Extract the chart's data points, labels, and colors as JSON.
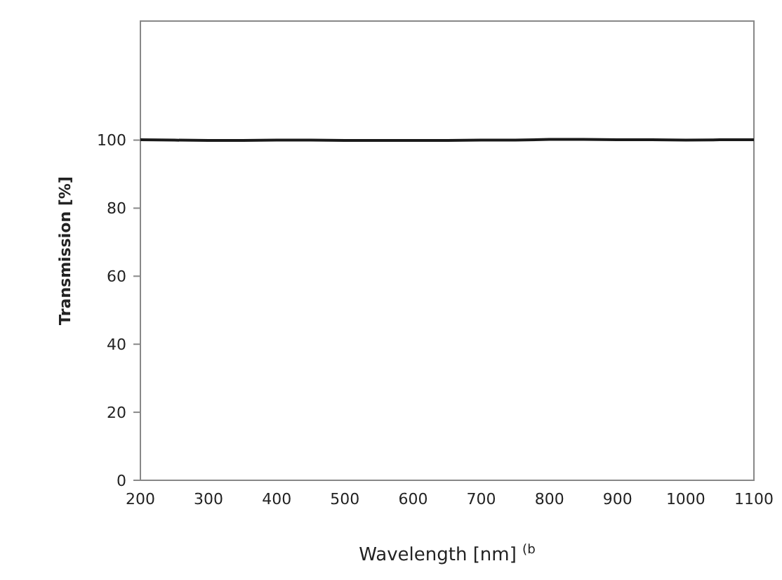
{
  "chart_data": {
    "type": "line",
    "xlabel": "Wavelength [nm] $^{(b}$",
    "ylabel": "Transmission [%]",
    "x": [
      200,
      250,
      300,
      350,
      400,
      450,
      500,
      550,
      600,
      650,
      700,
      750,
      800,
      850,
      900,
      950,
      1000,
      1050,
      1100
    ],
    "series": [
      {
        "color": "#1a1a1a",
        "values": [
          100.1,
          100,
          99.9,
          99.9,
          100,
          100,
          99.9,
          99.9,
          99.9,
          99.9,
          100,
          100,
          100.2,
          100.2,
          100.1,
          100.1,
          100,
          100.1,
          100.1
        ]
      }
    ],
    "xlim": [
      200,
      1100
    ],
    "xticks": [
      200,
      300,
      400,
      500,
      600,
      700,
      800,
      900,
      1000,
      1100
    ],
    "ylim": [
      0,
      135
    ],
    "yticks": [
      0,
      20,
      40,
      60,
      80,
      100
    ],
    "grid": false,
    "marker": "none",
    "line_style": "solid"
  }
}
